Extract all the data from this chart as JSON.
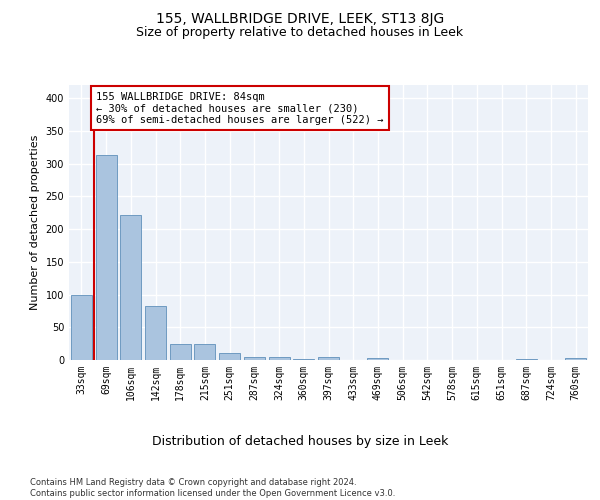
{
  "title": "155, WALLBRIDGE DRIVE, LEEK, ST13 8JG",
  "subtitle": "Size of property relative to detached houses in Leek",
  "xlabel": "Distribution of detached houses by size in Leek",
  "ylabel": "Number of detached properties",
  "categories": [
    "33sqm",
    "69sqm",
    "106sqm",
    "142sqm",
    "178sqm",
    "215sqm",
    "251sqm",
    "287sqm",
    "324sqm",
    "360sqm",
    "397sqm",
    "433sqm",
    "469sqm",
    "506sqm",
    "542sqm",
    "578sqm",
    "615sqm",
    "651sqm",
    "687sqm",
    "724sqm",
    "760sqm"
  ],
  "values": [
    99,
    313,
    222,
    82,
    25,
    25,
    11,
    5,
    4,
    2,
    5,
    0,
    3,
    0,
    0,
    0,
    0,
    0,
    2,
    0,
    3
  ],
  "bar_color": "#aac4df",
  "bar_edge_color": "#6090bb",
  "vline_x": 0.5,
  "vline_color": "#cc0000",
  "annotation_text": "155 WALLBRIDGE DRIVE: 84sqm\n← 30% of detached houses are smaller (230)\n69% of semi-detached houses are larger (522) →",
  "annotation_box_color": "white",
  "annotation_box_edge_color": "#cc0000",
  "ylim": [
    0,
    420
  ],
  "yticks": [
    0,
    50,
    100,
    150,
    200,
    250,
    300,
    350,
    400
  ],
  "footer": "Contains HM Land Registry data © Crown copyright and database right 2024.\nContains public sector information licensed under the Open Government Licence v3.0.",
  "background_color": "#edf2f9",
  "grid_color": "white",
  "title_fontsize": 10,
  "subtitle_fontsize": 9,
  "xlabel_fontsize": 9,
  "ylabel_fontsize": 8,
  "tick_fontsize": 7,
  "annotation_fontsize": 7.5,
  "footer_fontsize": 6
}
